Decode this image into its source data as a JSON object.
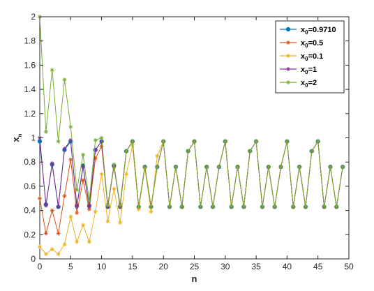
{
  "chart_data": {
    "type": "line",
    "title": "",
    "xlabel": "n",
    "ylabel": "x",
    "ylabel_subscript": "n",
    "xlim": [
      0,
      50
    ],
    "ylim": [
      0,
      2
    ],
    "xticks": [
      "0",
      "5",
      "10",
      "15",
      "20",
      "25",
      "30",
      "35",
      "40",
      "45",
      "50"
    ],
    "yticks": [
      "0",
      "0.2",
      "0.4",
      "0.6",
      "0.8",
      "1",
      "1.2",
      "1.4",
      "1.6",
      "1.8",
      "2"
    ],
    "grid": false,
    "legend_position": "top-right",
    "tail_cycle_start_n": 15,
    "tail_cycle": [
      0.97,
      0.43,
      0.76,
      0.43,
      0.76,
      0.97,
      0.43,
      0.76,
      0.43,
      0.89
    ],
    "x_end": 49,
    "series": [
      {
        "name_prefix": "x",
        "name_sub": "0",
        "name_suffix": "=0.9710",
        "color": "#0072bd",
        "marker": "circle",
        "values": [
          0.971,
          0.45,
          0.78,
          0.43,
          0.9,
          0.97,
          0.44,
          0.77,
          0.44,
          0.9,
          0.97,
          0.43,
          0.77,
          0.43,
          0.89
        ]
      },
      {
        "name_prefix": "x",
        "name_sub": "0",
        "name_suffix": "=0.5",
        "color": "#d95319",
        "marker": "asterisk",
        "values": [
          0.5,
          0.21,
          0.4,
          0.21,
          0.52,
          0.82,
          0.38,
          0.65,
          0.41,
          0.83,
          0.93,
          0.45,
          0.76,
          0.45,
          0.89
        ]
      },
      {
        "name_prefix": "x",
        "name_sub": "0",
        "name_suffix": "=0.1",
        "color": "#edb120",
        "marker": "asterisk",
        "values": [
          0.1,
          0.04,
          0.08,
          0.04,
          0.12,
          0.35,
          0.14,
          0.28,
          0.14,
          0.39,
          0.7,
          0.31,
          0.58,
          0.3,
          0.7,
          0.94,
          0.41,
          0.75,
          0.39,
          0.85
        ]
      },
      {
        "name_prefix": "x",
        "name_sub": "0",
        "name_suffix": "=1",
        "color": "#7e2f8e",
        "marker": "asterisk",
        "values": [
          1.0,
          0.44,
          0.79,
          0.43,
          0.91,
          0.98,
          0.43,
          0.76,
          0.43,
          0.9,
          0.97,
          0.43,
          0.77,
          0.43,
          0.89
        ]
      },
      {
        "name_prefix": "x",
        "name_sub": "0",
        "name_suffix": "=2",
        "color": "#77ac30",
        "marker": "asterisk",
        "values": [
          2.0,
          1.05,
          1.56,
          0.97,
          1.48,
          1.09,
          0.57,
          0.86,
          0.48,
          0.98,
          1.0,
          0.44,
          0.78,
          0.44,
          0.89
        ]
      }
    ]
  }
}
